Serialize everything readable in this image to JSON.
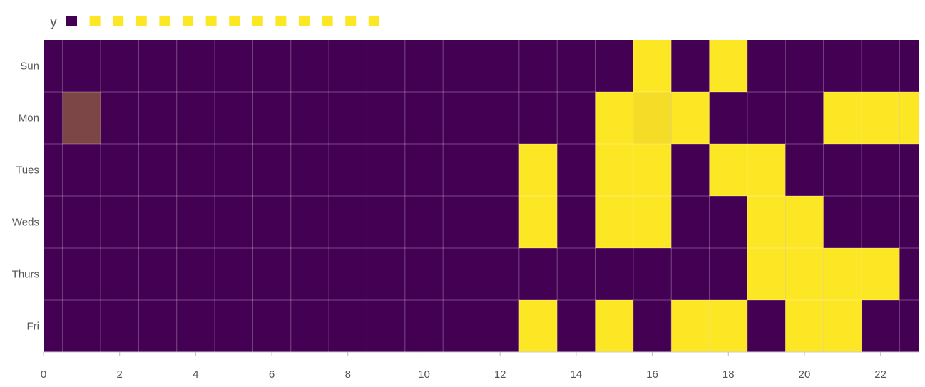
{
  "chart_data": {
    "type": "heatmap",
    "title": "",
    "xlabel": "",
    "ylabel": "",
    "x": [
      0,
      1,
      2,
      3,
      4,
      5,
      6,
      7,
      8,
      9,
      10,
      11,
      12,
      13,
      14,
      15,
      16,
      17,
      18,
      19,
      20,
      21,
      22,
      23
    ],
    "xlim": [
      0,
      23
    ],
    "x_ticks": [
      0,
      2,
      4,
      6,
      8,
      10,
      12,
      14,
      16,
      18,
      20,
      22
    ],
    "categories": [
      "Sun",
      "Mon",
      "Tues",
      "Weds",
      "Thurs",
      "Fri"
    ],
    "color_scale": {
      "low": "#440154",
      "high": "#fde725"
    },
    "legend": {
      "title": "y",
      "placement": "top-left",
      "swatch_count": 14
    },
    "grid": true,
    "values": [
      [
        0,
        0,
        0,
        0,
        0,
        0,
        0,
        0,
        0,
        0,
        0,
        0,
        0,
        0,
        0,
        0,
        1,
        0,
        1,
        0,
        0,
        0,
        0,
        0
      ],
      [
        0,
        0.3,
        0,
        0,
        0,
        0,
        0,
        0,
        0,
        0,
        0,
        0,
        0,
        0,
        0,
        1,
        0.95,
        1,
        0,
        0,
        0,
        1,
        1,
        1
      ],
      [
        0,
        0,
        0,
        0,
        0,
        0,
        0,
        0,
        0,
        0,
        0,
        0,
        0,
        1,
        0,
        1,
        1,
        0,
        1,
        1,
        0,
        0,
        0,
        0
      ],
      [
        0,
        0,
        0,
        0,
        0,
        0,
        0,
        0,
        0,
        0,
        0,
        0,
        0,
        1,
        0,
        1,
        1,
        0,
        0,
        1,
        1,
        0,
        0,
        0
      ],
      [
        0,
        0,
        0,
        0,
        0,
        0,
        0,
        0,
        0,
        0,
        0,
        0,
        0,
        0,
        0,
        0,
        0,
        0,
        0,
        1,
        1,
        1,
        1,
        0
      ],
      [
        0,
        0,
        0,
        0,
        0,
        0,
        0,
        0,
        0,
        0,
        0,
        0,
        0,
        1,
        0,
        1,
        0,
        1,
        1,
        0,
        1,
        1,
        0,
        0
      ]
    ]
  }
}
